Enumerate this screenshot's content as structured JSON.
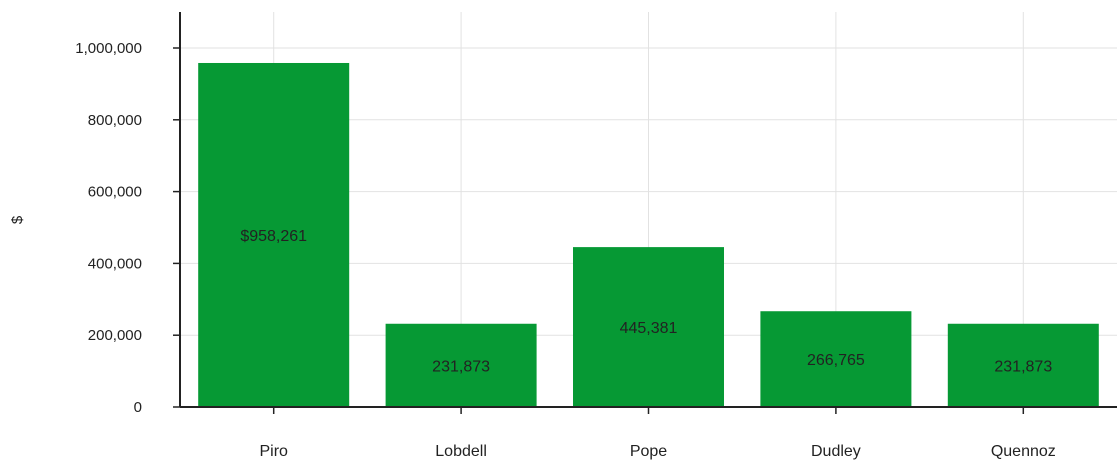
{
  "chart_data": {
    "type": "bar",
    "title": "",
    "xlabel": "",
    "ylabel": "$",
    "ylim": [
      0,
      1000000
    ],
    "yticks": [
      0,
      200000,
      400000,
      600000,
      800000,
      1000000
    ],
    "ytick_labels": [
      "0",
      "200,000",
      "400,000",
      "600,000",
      "800,000",
      "1,000,000"
    ],
    "categories": [
      "Piro",
      "Lobdell",
      "Pope",
      "Dudley",
      "Quennoz"
    ],
    "values": [
      958261,
      231873,
      445381,
      266765,
      231873
    ],
    "data_labels": [
      "$958,261",
      "231,873",
      "445,381",
      "266,765",
      "231,873"
    ],
    "grid": true,
    "bar_color": "#069934"
  }
}
